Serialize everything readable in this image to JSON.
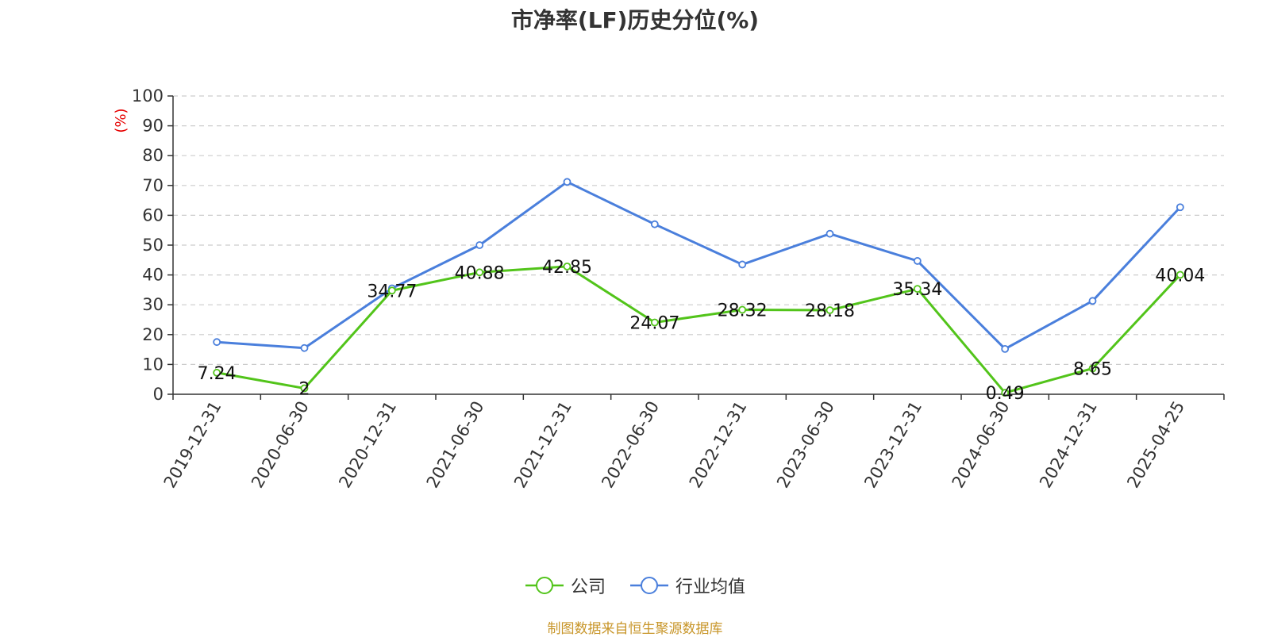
{
  "chart_data": {
    "type": "line",
    "title": "市净率(LF)历史分位(%)",
    "ylabel": "(%)",
    "ylim": [
      0,
      100
    ],
    "yticks": [
      0,
      10,
      20,
      30,
      40,
      50,
      60,
      70,
      80,
      90,
      100
    ],
    "grid": true,
    "legend_position": "bottom",
    "categories": [
      "2019-12-31",
      "2020-06-30",
      "2020-12-31",
      "2021-06-30",
      "2021-12-31",
      "2022-06-30",
      "2022-12-31",
      "2023-06-30",
      "2023-12-31",
      "2024-06-30",
      "2024-12-31",
      "2025-04-25"
    ],
    "series": [
      {
        "name": "公司",
        "color": "#52c41a",
        "values": [
          7.24,
          2,
          34.77,
          40.88,
          42.85,
          24.07,
          28.32,
          28.18,
          35.34,
          0.49,
          8.65,
          40.04
        ],
        "labels": [
          "7.24",
          "2",
          "34.77",
          "40.88",
          "42.85",
          "24.07",
          "28.32",
          "28.18",
          "35.34",
          "0.49",
          "8.65",
          "40.04"
        ]
      },
      {
        "name": "行业均值",
        "color": "#4a7fdc",
        "values": [
          17.5,
          15.5,
          35.5,
          50,
          71.2,
          57,
          43.5,
          53.8,
          44.7,
          15.2,
          31.3,
          62.7
        ]
      }
    ],
    "unit_color": "#e60000"
  },
  "source": {
    "text": "制图数据来自恒生聚源数据库",
    "color": "#c8962a"
  }
}
